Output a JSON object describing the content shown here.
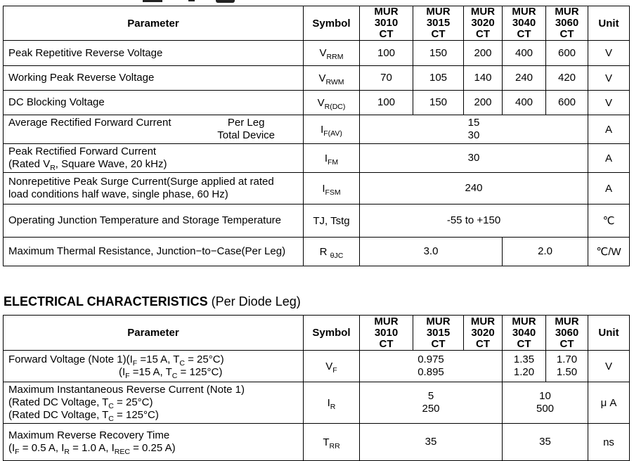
{
  "section2": {
    "title_bold": "ELECTRICAL CHARACTERISTICS",
    "title_rest": " (Per Diode Leg)"
  },
  "table1": {
    "columns": {
      "param": "Parameter",
      "symbol": "Symbol",
      "devices": [
        "MUR\n3010\nCT",
        "MUR\n3015\nCT",
        "MUR\n3020\nCT",
        "MUR\n3040\nCT",
        "MUR\n3060\nCT"
      ],
      "unit": "Unit"
    },
    "rows": [
      {
        "param": [
          "Peak Repetitive Reverse Voltage"
        ],
        "symbol": "V_{RRM}",
        "cells": [
          {
            "text": "100",
            "span": 1
          },
          {
            "text": "150",
            "span": 1
          },
          {
            "text": "200",
            "span": 1
          },
          {
            "text": "400",
            "span": 1
          },
          {
            "text": "600",
            "span": 1
          }
        ],
        "unit": "V"
      },
      {
        "param": [
          "Working Peak Reverse Voltage"
        ],
        "symbol": "V_{RWM}",
        "cells": [
          {
            "text": "70",
            "span": 1
          },
          {
            "text": "105",
            "span": 1
          },
          {
            "text": "140",
            "span": 1
          },
          {
            "text": "240",
            "span": 1
          },
          {
            "text": "420",
            "span": 1
          }
        ],
        "unit": "V"
      },
      {
        "param": [
          "DC Blocking Voltage"
        ],
        "symbol": "V_{R(DC)}",
        "cells": [
          {
            "text": "100",
            "span": 1
          },
          {
            "text": "150",
            "span": 1
          },
          {
            "text": "200",
            "span": 1
          },
          {
            "text": "400",
            "span": 1
          },
          {
            "text": "600",
            "span": 1
          }
        ],
        "unit": "V"
      },
      {
        "param_left": "Average Rectified Forward Current",
        "param_right": "Per Leg\nTotal Device",
        "symbol": "I_{F(AV)}",
        "cells": [
          {
            "text": "15\n30",
            "span": 5
          }
        ],
        "unit": "A"
      },
      {
        "param": [
          "Peak Rectified Forward Current",
          "(Rated V_{R}, Square Wave, 20 kHz)"
        ],
        "symbol": "I_{FM}",
        "cells": [
          {
            "text": "30",
            "span": 5
          }
        ],
        "unit": "A"
      },
      {
        "param": [
          "Nonrepetitive Peak Surge Current(Surge applied at rated",
          "load conditions half wave, single phase, 60 Hz)"
        ],
        "symbol": "I_{FSM}",
        "cells": [
          {
            "text": "240",
            "span": 5
          }
        ],
        "unit": "A"
      },
      {
        "param": [
          "Operating Junction Temperature and Storage Temperature"
        ],
        "symbol": "TJ, Tstg",
        "cells": [
          {
            "text": "-55 to +150",
            "span": 5
          }
        ],
        "unit": "℃"
      },
      {
        "param": [
          "Maximum Thermal Resistance, Junction−to−Case(Per Leg)"
        ],
        "symbol": "R _{θJC}",
        "cells": [
          {
            "text": "3.0",
            "span": 3
          },
          {
            "text": "2.0",
            "span": 2
          }
        ],
        "unit": "℃/W"
      }
    ]
  },
  "table2": {
    "columns": {
      "param": "Parameter",
      "symbol": "Symbol",
      "devices": [
        "MUR\n3010\nCT",
        "MUR\n3015\nCT",
        "MUR\n3020\nCT",
        "MUR\n3040\nCT",
        "MUR\n3060\nCT"
      ],
      "unit": "Unit"
    },
    "rows": [
      {
        "param": [
          "Forward Voltage (Note 1)(I_{F} =15 A, T_{C} = 25°C)",
          "(I_{F} =15 A, T_{C} = 125°C)"
        ],
        "indent_lines": [
          1
        ],
        "symbol": "V_{F}",
        "cells": [
          {
            "text": "0.975\n0.895",
            "span": 3
          },
          {
            "text": "1.35\n1.20",
            "span": 1
          },
          {
            "text": "1.70\n1.50",
            "span": 1
          }
        ],
        "unit": "V"
      },
      {
        "param": [
          "Maximum Instantaneous Reverse Current (Note 1)",
          "(Rated DC Voltage, T_{C} = 25°C)",
          "(Rated DC Voltage, T_{C} = 125°C)"
        ],
        "symbol": "I_{R}",
        "cells": [
          {
            "text": "5\n250",
            "span": 3
          },
          {
            "text": "10\n500",
            "span": 2
          }
        ],
        "unit": "μ A"
      },
      {
        "param": [
          "Maximum Reverse Recovery Time",
          "(I_{F} = 0.5 A, I_{R} = 1.0 A, I_{REC} = 0.25 A)"
        ],
        "symbol": "T_{RR}",
        "cells": [
          {
            "text": "35",
            "span": 3
          },
          {
            "text": "35",
            "span": 2
          }
        ],
        "unit": "ns"
      }
    ]
  }
}
